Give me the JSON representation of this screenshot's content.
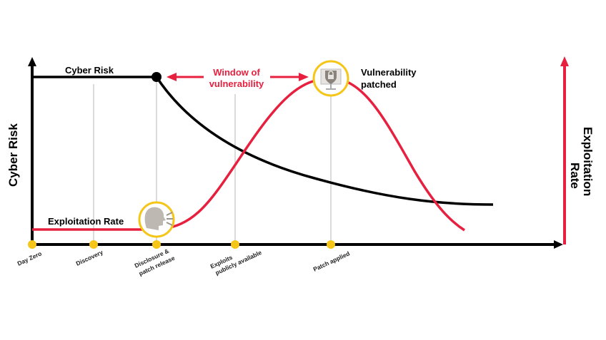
{
  "y_axis_left_label": "Cyber Risk",
  "y_axis_right_label": [
    "Exploitation",
    "Rate"
  ],
  "cyber_risk_label": "Cyber Risk",
  "exploitation_rate_label": "Exploitation Rate",
  "window_label": [
    "Window of",
    "vulnerability"
  ],
  "patched_label": [
    "Vulnerability",
    "patched"
  ],
  "milestones": [
    {
      "lines": [
        "Day Zero"
      ]
    },
    {
      "lines": [
        "Discovery"
      ]
    },
    {
      "lines": [
        "Disclosure &",
        "patch release"
      ]
    },
    {
      "lines": [
        "Exploits",
        "publicly available"
      ]
    },
    {
      "lines": [
        "Patch applied"
      ]
    }
  ],
  "colors": {
    "risk": "#000000",
    "exploit": "#e8203f",
    "milestone": "#f5c518",
    "guide": "#cccccc"
  }
}
